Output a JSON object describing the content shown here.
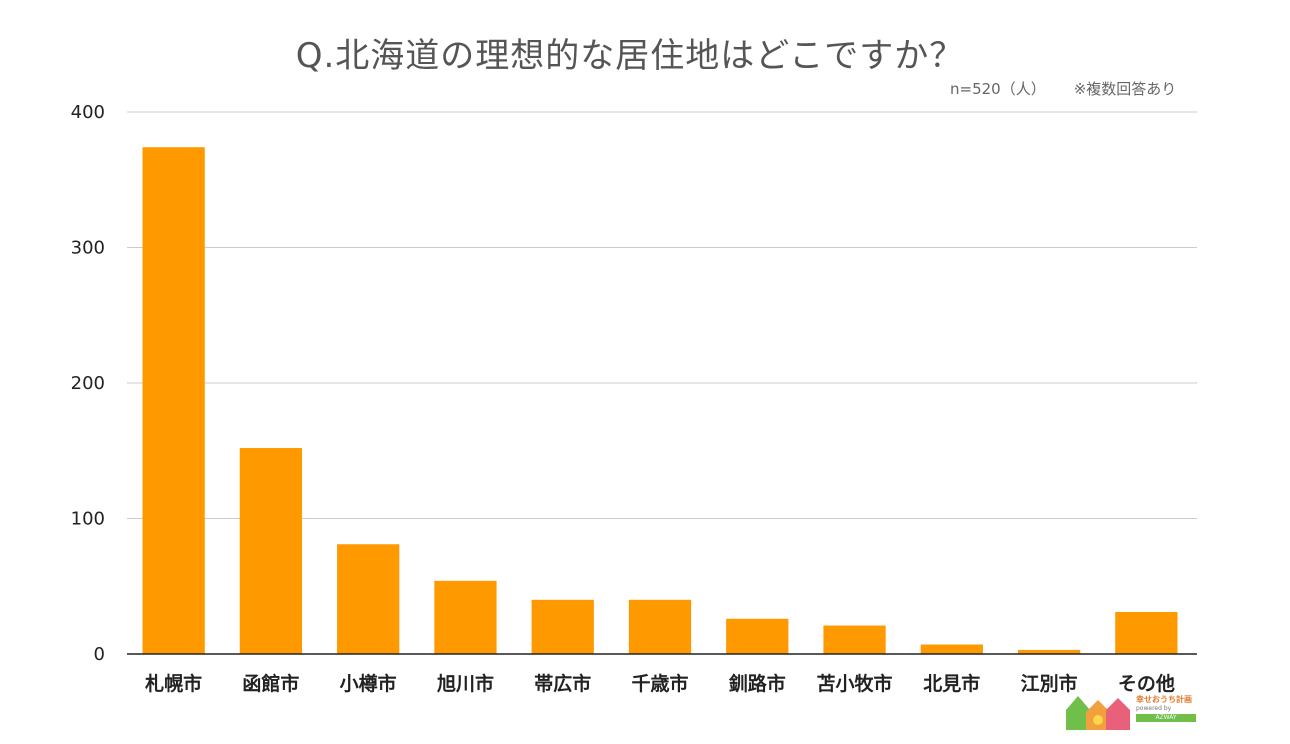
{
  "chart_data": {
    "type": "bar",
    "title": "Q.北海道の理想的な居住地はどこですか？",
    "note_n": "n=520（人）",
    "note_multi": "※複数回答あり",
    "categories": [
      "札幌市",
      "函館市",
      "小樽市",
      "旭川市",
      "帯広市",
      "千歳市",
      "釧路市",
      "苫小牧市",
      "北見市",
      "江別市",
      "その他"
    ],
    "values": [
      374,
      152,
      81,
      54,
      40,
      40,
      26,
      21,
      7,
      3,
      31
    ],
    "ylim": [
      0,
      400
    ],
    "yticks": [
      0,
      100,
      200,
      300,
      400
    ],
    "grid": true,
    "bar_color": "#ff9900",
    "grid_color": "#cccccc",
    "legend": "none"
  },
  "logo": {
    "text": "幸せおうち計画",
    "sub": "powered by",
    "brand": "AZWAY",
    "green": "#6fbf4a",
    "orange": "#f2a03d",
    "pink": "#e8607a"
  }
}
